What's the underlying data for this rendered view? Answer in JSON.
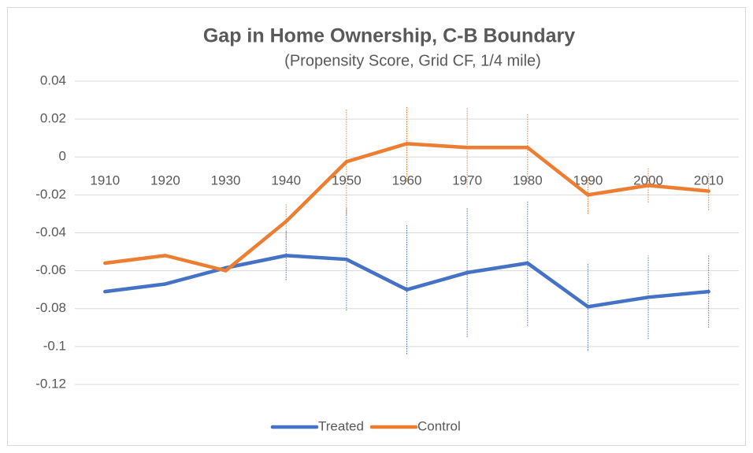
{
  "chart_data": {
    "type": "line",
    "title": "Gap in Home Ownership, C-B Boundary",
    "subtitle": "(Propensity Score, Grid CF, 1/4 mile)",
    "categories": [
      "1910",
      "1920",
      "1930",
      "1940",
      "1950",
      "1960",
      "1970",
      "1980",
      "1990",
      "2000",
      "2010"
    ],
    "series": [
      {
        "name": "Treated",
        "color": "#4472c4",
        "values": [
          -0.071,
          -0.067,
          -0.0585,
          -0.052,
          -0.054,
          -0.07,
          -0.061,
          -0.056,
          -0.079,
          -0.074,
          -0.071
        ],
        "errors": [
          null,
          null,
          null,
          0.013,
          0.027,
          0.034,
          0.034,
          0.033,
          0.023,
          0.022,
          0.019
        ]
      },
      {
        "name": "Control",
        "color": "#ed7d31",
        "values": [
          -0.056,
          -0.052,
          -0.06,
          -0.034,
          -0.0025,
          0.007,
          0.005,
          0.005,
          -0.02,
          -0.015,
          -0.018
        ],
        "errors": [
          null,
          null,
          null,
          0.009,
          0.028,
          0.02,
          0.021,
          0.018,
          0.01,
          0.009,
          0.01
        ]
      }
    ],
    "ylim": [
      -0.12,
      0.04
    ],
    "yticks": [
      0.04,
      0.02,
      0,
      -0.02,
      -0.04,
      -0.06,
      -0.08,
      -0.1,
      -0.12
    ],
    "grid": true,
    "legend": "bottom"
  }
}
